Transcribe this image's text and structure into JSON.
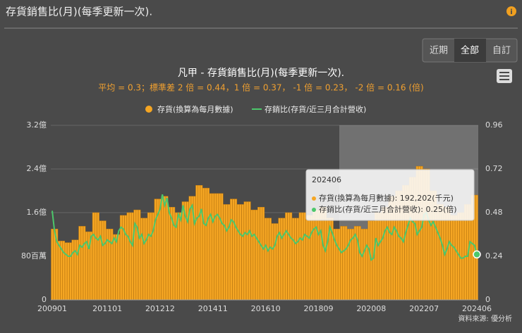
{
  "header": {
    "title": "存貨銷售比(月)(每季更新一次)."
  },
  "buttons": [
    "近期",
    "全部",
    "自訂"
  ],
  "source": "資料來源: 優分析",
  "chart_data": {
    "type": "bar_line",
    "title": "凡甲 - 存貨銷售比(月)(每季更新一次).",
    "subtitle": "平均 = 0.3；標準差 2 倍 = 0.44，1 倍 = 0.37， -1 倍 = 0.23， -2 倍 = 0.16 (倍)",
    "categories": [
      "200901",
      null,
      null,
      null,
      null,
      null,
      null,
      null,
      null,
      null,
      null,
      null,
      null,
      null,
      null,
      null,
      null,
      null,
      null,
      null,
      null,
      null,
      null,
      null,
      "201101",
      null,
      null,
      null,
      null,
      null,
      null,
      null,
      null,
      null,
      null,
      null,
      null,
      null,
      null,
      null,
      null,
      null,
      null,
      null,
      null,
      null,
      null,
      "201212",
      null,
      null,
      null,
      null,
      null,
      null,
      null,
      null,
      null,
      null,
      null,
      null,
      null,
      null,
      null,
      null,
      null,
      null,
      null,
      null,
      null,
      null,
      "201411",
      null,
      null,
      null,
      null,
      null,
      null,
      null,
      null,
      null,
      null,
      null,
      null,
      null,
      null,
      null,
      null,
      null,
      null,
      null,
      null,
      null,
      null,
      "201610",
      null,
      null,
      null,
      null,
      null,
      null,
      null,
      null,
      null,
      null,
      null,
      null,
      null,
      null,
      null,
      null,
      null,
      null,
      null,
      null,
      null,
      null,
      "201809",
      null,
      null,
      null,
      null,
      null,
      null,
      null,
      null,
      null,
      null,
      null,
      null,
      null,
      null,
      null,
      null,
      null,
      null,
      null,
      null,
      null,
      null,
      "202008",
      null,
      null,
      null,
      null,
      null,
      null,
      null,
      null,
      null,
      null,
      null,
      null,
      null,
      null,
      null,
      null,
      null,
      null,
      null,
      null,
      null,
      null,
      "202207",
      null,
      null,
      null,
      null,
      null,
      null,
      null,
      null,
      null,
      null,
      null,
      null,
      null,
      null,
      null,
      null,
      null,
      null,
      null,
      null,
      null,
      null,
      "202406"
    ],
    "series": [
      {
        "name": "存貨(換算為每月數據)",
        "color": "#f5a623",
        "values": [
          1.3,
          1.3,
          1.3,
          1.08,
          1.08,
          1.08,
          1.05,
          1.05,
          1.05,
          1.1,
          1.1,
          1.1,
          1.35,
          1.35,
          1.35,
          1.25,
          1.25,
          1.25,
          1.6,
          1.6,
          1.6,
          1.45,
          1.45,
          1.45,
          1.3,
          1.3,
          1.3,
          1.2,
          1.2,
          1.2,
          1.55,
          1.55,
          1.55,
          1.6,
          1.6,
          1.6,
          1.65,
          1.65,
          1.65,
          1.5,
          1.5,
          1.5,
          1.6,
          1.6,
          1.6,
          1.85,
          1.85,
          1.85,
          1.9,
          1.9,
          1.9,
          1.7,
          1.7,
          1.7,
          1.6,
          1.6,
          1.6,
          1.8,
          1.8,
          1.8,
          1.9,
          1.9,
          1.9,
          2.1,
          2.1,
          2.1,
          2.05,
          2.05,
          2.05,
          1.95,
          1.95,
          1.95,
          1.95,
          1.95,
          1.95,
          1.75,
          1.75,
          1.75,
          1.85,
          1.85,
          1.85,
          1.75,
          1.75,
          1.75,
          1.8,
          1.8,
          1.8,
          1.65,
          1.65,
          1.65,
          1.7,
          1.7,
          1.7,
          1.5,
          1.5,
          1.5,
          1.4,
          1.4,
          1.4,
          1.5,
          1.5,
          1.5,
          1.6,
          1.6,
          1.6,
          1.5,
          1.5,
          1.5,
          1.6,
          1.6,
          1.6,
          1.55,
          1.55,
          1.55,
          1.65,
          1.65,
          1.65,
          1.7,
          1.7,
          1.7,
          1.5,
          1.5,
          1.5,
          1.3,
          1.3,
          1.3,
          1.35,
          1.35,
          1.35,
          1.3,
          1.3,
          1.3,
          1.35,
          1.35,
          1.35,
          1.3,
          1.3,
          1.3,
          1.45,
          1.45,
          1.45,
          1.6,
          1.6,
          1.6,
          1.7,
          1.7,
          1.7,
          1.9,
          1.9,
          1.9,
          2.0,
          2.0,
          2.0,
          2.1,
          2.1,
          2.1,
          2.25,
          2.25,
          2.25,
          2.45,
          2.45,
          2.45,
          2.4,
          2.4,
          2.4,
          2.0,
          2.0,
          2.0,
          1.75,
          1.75,
          1.75,
          1.7,
          1.7,
          1.7,
          1.55,
          1.55,
          1.55,
          1.6,
          1.6,
          1.6,
          1.75,
          1.75,
          1.75,
          1.92202,
          1.92202,
          1.92202
        ]
      },
      {
        "name": "存銷比(存貨/近三月合計營收)",
        "color": "#4cc76b",
        "axis": "y2",
        "values": [
          0.49,
          0.38,
          0.32,
          0.3,
          0.28,
          0.26,
          0.25,
          0.24,
          0.24,
          0.26,
          0.27,
          0.25,
          0.3,
          0.29,
          0.31,
          0.32,
          0.28,
          0.35,
          0.36,
          0.34,
          0.33,
          0.35,
          0.3,
          0.31,
          0.33,
          0.32,
          0.31,
          0.34,
          0.32,
          0.38,
          0.4,
          0.39,
          0.36,
          0.35,
          0.32,
          0.3,
          0.42,
          0.4,
          0.34,
          0.36,
          0.31,
          0.33,
          0.36,
          0.35,
          0.38,
          0.44,
          0.47,
          0.5,
          0.58,
          0.52,
          0.56,
          0.48,
          0.45,
          0.41,
          0.4,
          0.47,
          0.44,
          0.52,
          0.46,
          0.43,
          0.5,
          0.52,
          0.42,
          0.45,
          0.46,
          0.5,
          0.42,
          0.41,
          0.45,
          0.47,
          0.43,
          0.46,
          0.47,
          0.45,
          0.42,
          0.41,
          0.38,
          0.4,
          0.44,
          0.43,
          0.4,
          0.38,
          0.36,
          0.35,
          0.37,
          0.36,
          0.38,
          0.35,
          0.36,
          0.34,
          0.32,
          0.3,
          0.28,
          0.3,
          0.27,
          0.29,
          0.28,
          0.3,
          0.35,
          0.37,
          0.34,
          0.36,
          0.38,
          0.36,
          0.34,
          0.33,
          0.31,
          0.32,
          0.34,
          0.33,
          0.36,
          0.35,
          0.34,
          0.37,
          0.39,
          0.4,
          0.36,
          0.38,
          0.3,
          0.27,
          0.32,
          0.4,
          0.37,
          0.33,
          0.3,
          0.28,
          0.26,
          0.27,
          0.28,
          0.3,
          0.33,
          0.34,
          0.36,
          0.33,
          0.26,
          0.24,
          0.27,
          0.3,
          0.28,
          0.22,
          0.23,
          0.34,
          0.3,
          0.32,
          0.34,
          0.38,
          0.4,
          0.37,
          0.36,
          0.4,
          0.38,
          0.35,
          0.34,
          0.32,
          0.37,
          0.41,
          0.45,
          0.43,
          0.42,
          0.36,
          0.38,
          0.4,
          0.47,
          0.48,
          0.44,
          0.41,
          0.43,
          0.4,
          0.37,
          0.34,
          0.3,
          0.25,
          0.28,
          0.32,
          0.3,
          0.29,
          0.27,
          0.25,
          0.23,
          0.23,
          0.24,
          0.24,
          0.32,
          0.31,
          0.3,
          0.25
        ]
      }
    ],
    "ylim": [
      0,
      3.2
    ],
    "yticks": [
      0,
      {
        "value": 0.8,
        "label": "80百萬"
      },
      {
        "value": 1.6,
        "label": "1.6億"
      },
      {
        "value": 2.4,
        "label": "2.4億"
      },
      {
        "value": 3.2,
        "label": "3.2億"
      }
    ],
    "y2lim": [
      0,
      0.96
    ],
    "y2ticks": [
      0,
      0.24,
      0.48,
      0.72,
      0.96
    ],
    "grid": true,
    "tooltip": [
      "存貨(換算為每月數據): 192,202(千元)",
      "存銷比(存貨/近三月合計營收): 0.25(倍)"
    ]
  }
}
